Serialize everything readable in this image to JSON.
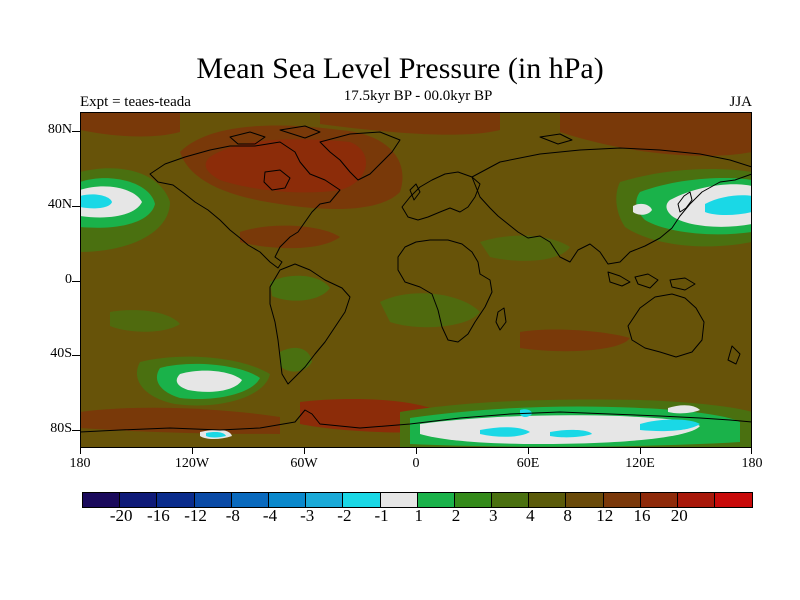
{
  "title": "Mean Sea Level Pressure (in hPa)",
  "subtitle": "17.5kyr BP - 00.0kyr BP",
  "left_label": "Expt = teaes-teada",
  "right_label": "JJA",
  "lat_labels": [
    "80N",
    "40N",
    "0",
    "40S",
    "80S"
  ],
  "lon_labels": [
    "180",
    "120W",
    "60W",
    "0",
    "60E",
    "120E",
    "180"
  ],
  "colorbar": {
    "colors": [
      "#1a0a5c",
      "#0f1a78",
      "#0a2c8c",
      "#0a4aa6",
      "#0a6abe",
      "#0a88cc",
      "#1aaad8",
      "#1ad8e6",
      "#e6e6e6",
      "#1ab24a",
      "#348a1a",
      "#4a7010",
      "#5a5a0a",
      "#6a4a0a",
      "#7a380a",
      "#8e2a0a",
      "#a8180a",
      "#c80a0a"
    ],
    "labels": [
      "-20",
      "-16",
      "-12",
      "-8",
      "-4",
      "-3",
      "-2",
      "-1",
      "1",
      "2",
      "3",
      "4",
      "8",
      "12",
      "16",
      "20"
    ]
  },
  "palette": {
    "base": "#675309",
    "deep_red": "#8e2a0a",
    "red": "#7a380a",
    "green": "#1ab24a",
    "dark_green": "#4a7010",
    "cyan": "#1ad8e6",
    "light": "#e6e6e6",
    "coast": "#000000"
  }
}
